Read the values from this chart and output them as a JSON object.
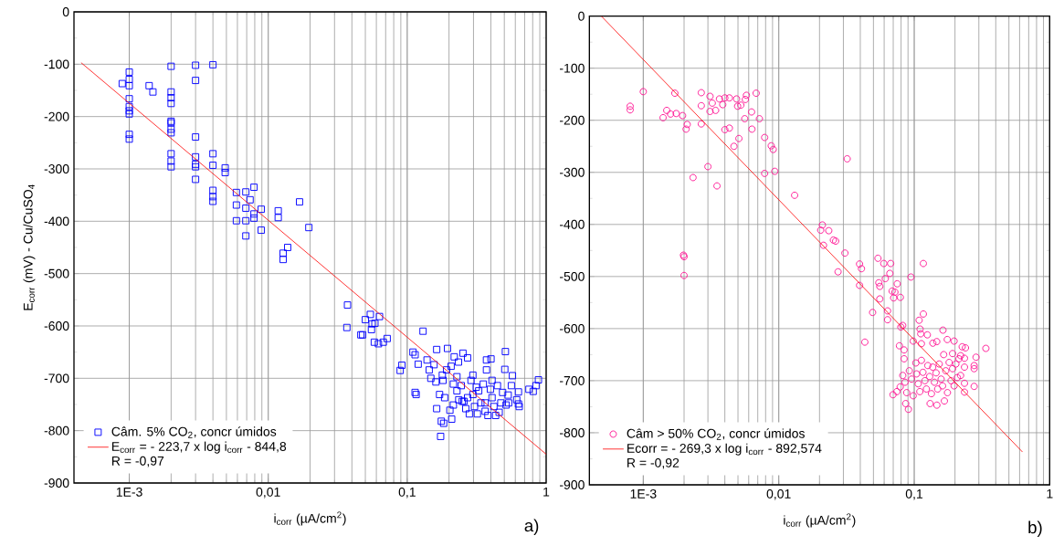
{
  "chart_data": [
    {
      "type": "scatter",
      "xlabel": "i$_{corr}$ (µA/cm$^{2}$)",
      "ylabel": "E$_{corr}$ (mV) - Cu/CuSO$_{4}$",
      "log": "x",
      "xlim": [
        0.0004,
        1
      ],
      "ylim": [
        -900,
        0
      ],
      "xticks": [
        {
          "value": 0.001,
          "label": "1E-3"
        },
        {
          "value": 0.01,
          "label": "0,01"
        },
        {
          "value": 0.1,
          "label": "0,1"
        },
        1
      ],
      "yticks": [
        -900,
        -800,
        -700,
        -600,
        -500,
        -400,
        -300,
        -200,
        -100,
        0
      ],
      "grid": true,
      "legend": "bottom left",
      "marker": "square",
      "series": [
        {
          "name": "Câm. 5% CO$_{2}$, concr úmidos",
          "color": "#0000ff",
          "x": [
            0.00089,
            0.001,
            0.001,
            0.001,
            0.001,
            0.001,
            0.001,
            0.001,
            0.001,
            0.001,
            0.00139,
            0.00148,
            0.002,
            0.002,
            0.002,
            0.002,
            0.002,
            0.002,
            0.002,
            0.002,
            0.002,
            0.002,
            0.002,
            0.003,
            0.003,
            0.003,
            0.003,
            0.003,
            0.003,
            0.003,
            0.004,
            0.004,
            0.004,
            0.004,
            0.004,
            0.004,
            0.0049,
            0.0049,
            0.0059,
            0.0059,
            0.0059,
            0.0069,
            0.0069,
            0.0069,
            0.0069,
            0.0074,
            0.0079,
            0.0079,
            0.0079,
            0.0089,
            0.0089,
            0.0118,
            0.0118,
            0.0168,
            0.0138,
            0.0128,
            0.0128,
            0.0196,
            0.0372,
            0.0368,
            0.0464,
            0.0478,
            0.05,
            0.0543,
            0.0553,
            0.0559,
            0.058,
            0.0586,
            0.0621,
            0.0632,
            0.0673,
            0.0718,
            0.089,
            0.0916,
            0.11,
            0.114,
            0.114,
            0.116,
            0.12,
            0.13,
            0.139,
            0.144,
            0.148,
            0.163,
            0.174,
            0.176,
            0.183,
            0.163,
            0.195,
            0.207,
            0.218,
            0.234,
            0.252,
            0.272,
            0.372,
            0.401,
            0.372,
            0.509,
            0.504,
            0.572,
            0.752,
            0.807,
            0.845,
            0.88,
            0.632,
            0.64,
            0.632,
            0.537,
            0.533,
            0.171,
            0.186,
            0.203,
            0.209,
            0.215,
            0.228,
            0.235,
            0.245,
            0.256,
            0.264,
            0.28,
            0.288,
            0.297,
            0.305,
            0.32,
            0.327,
            0.339,
            0.353,
            0.364,
            0.381,
            0.397,
            0.408,
            0.421,
            0.433,
            0.446,
            0.459,
            0.472,
            0.486,
            0.181,
            0.161,
            0.192,
            0.156,
            0.179,
            0.228,
            0.297,
            0.408,
            0.562,
            0.614,
            0.364,
            0.272,
            0.215,
            0.249,
            0.314,
            0.515
          ],
          "values": [
            -137,
            -115,
            -129,
            -141,
            -166,
            -181,
            -189,
            -195,
            -234,
            -243,
            -141,
            -153,
            -104,
            -153,
            -164,
            -175,
            -209,
            -212,
            -224,
            -231,
            -271,
            -285,
            -296,
            -102,
            -131,
            -239,
            -277,
            -291,
            -296,
            -320,
            -101,
            -271,
            -293,
            -341,
            -353,
            -362,
            -298,
            -307,
            -345,
            -369,
            -399,
            -344,
            -375,
            -399,
            -428,
            -359,
            -335,
            -386,
            -394,
            -377,
            -417,
            -380,
            -393,
            -363,
            -450,
            -461,
            -473,
            -412,
            -560,
            -603,
            -617,
            -617,
            -588,
            -578,
            -607,
            -596,
            -631,
            -595,
            -634,
            -582,
            -631,
            -624,
            -685,
            -675,
            -650,
            -655,
            -727,
            -731,
            -673,
            -610,
            -665,
            -684,
            -700,
            -758,
            -811,
            -782,
            -786,
            -645,
            -643,
            -677,
            -659,
            -669,
            -652,
            -661,
            -665,
            -663,
            -684,
            -649,
            -683,
            -695,
            -721,
            -725,
            -714,
            -703,
            -726,
            -754,
            -749,
            -747,
            -732,
            -731,
            -737,
            -761,
            -778,
            -751,
            -724,
            -741,
            -714,
            -744,
            -758,
            -768,
            -704,
            -731,
            -754,
            -768,
            -724,
            -747,
            -711,
            -763,
            -771,
            -721,
            -737,
            -754,
            -771,
            -714,
            -765,
            -747,
            -727,
            -704,
            -707,
            -684,
            -674,
            -694,
            -697,
            -694,
            -704,
            -714,
            -741,
            -747,
            -737,
            -711,
            -744,
            -717,
            -751
          ]
        },
        {
          "type": "line",
          "name": "E$_{corr}$ = - 223,7 x log i$_{corr}$ - 844,8",
          "color": "#ff0000",
          "marker": "none",
          "line_style": "solid",
          "x": [
            0.00045,
            1
          ],
          "values": [
            -97,
            -845
          ]
        }
      ],
      "annotations": [
        "R = -0,97",
        "a)"
      ]
    },
    {
      "type": "scatter",
      "xlabel": "i$_{corr}$ (µA/cm$^{2}$)",
      "log": "x",
      "xlim": [
        0.0004,
        1
      ],
      "ylim": [
        -900,
        0
      ],
      "xticks": [
        {
          "value": 0.001,
          "label": "1E-3"
        },
        {
          "value": 0.01,
          "label": "0,01"
        },
        {
          "value": 0.1,
          "label": "0,1"
        },
        1
      ],
      "yticks": [
        -900,
        -800,
        -700,
        -600,
        -500,
        -400,
        -300,
        -200,
        -100,
        0
      ],
      "grid": true,
      "legend": "bottom left",
      "marker": "circle",
      "series": [
        {
          "name": "Câm > 50% CO$_{2}$, concr úmidos",
          "color": "#ff1493",
          "x": [
            0.0008,
            0.0008,
            0.001,
            0.00171,
            0.0014,
            0.00149,
            0.00159,
            0.00175,
            0.00195,
            0.00211,
            0.00207,
            0.00198,
            0.002,
            0.002,
            0.00233,
            0.00268,
            0.00268,
            0.00268,
            0.003,
            0.00311,
            0.00311,
            0.00323,
            0.00342,
            0.0035,
            0.00365,
            0.00386,
            0.004,
            0.004,
            0.00432,
            0.00432,
            0.00467,
            0.00488,
            0.00497,
            0.00508,
            0.00525,
            0.00561,
            0.00567,
            0.00577,
            0.0063,
            0.00634,
            0.00681,
            0.0072,
            0.00787,
            0.00787,
            0.0088,
            0.0091,
            0.00935,
            0.0131,
            0.021,
            0.0204,
            0.0214,
            0.0234,
            0.0253,
            0.0263,
            0.0308,
            0.032,
            0.0274,
            0.0395,
            0.0408,
            0.054,
            0.0596,
            0.067,
            0.0661,
            0.1168,
            0.0946,
            0.0395,
            0.0493,
            0.0548,
            0.0557,
            0.0557,
            0.0612,
            0.0636,
            0.0636,
            0.0749,
            0.0687,
            0.072,
            0.0705,
            0.079,
            0.0778,
            0.0822,
            0.0842,
            0.0842,
            0.0865,
            0.0906,
            0.0432,
            0.0797,
            0.0983,
            0.1087,
            0.1105,
            0.1117,
            0.1168,
            0.113,
            0.125,
            0.1373,
            0.1467,
            0.163,
            0.1754,
            0.197,
            0.338,
            0.286,
            0.277,
            0.277,
            0.277,
            0.235,
            0.235,
            0.235,
            0.235,
            0.239,
            0.22,
            0.22,
            0.226,
            0.165,
            0.192,
            0.0697,
            0.0745,
            0.0788,
            0.0823,
            0.0856,
            0.088,
            0.092,
            0.0956,
            0.0983,
            0.1028,
            0.104,
            0.107,
            0.11,
            0.113,
            0.116,
            0.12,
            0.123,
            0.126,
            0.13,
            0.134,
            0.137,
            0.141,
            0.145,
            0.149,
            0.153,
            0.158,
            0.162,
            0.171,
            0.176,
            0.181,
            0.187,
            0.192,
            0.197,
            0.203,
            0.208,
            0.214,
            0.131,
            0.147,
            0.167
          ],
          "values": [
            -173,
            -180,
            -145,
            -148,
            -195,
            -181,
            -188,
            -187,
            -191,
            -208,
            -217,
            -459,
            -462,
            -498,
            -310,
            -147,
            -172,
            -207,
            -289,
            -154,
            -183,
            -167,
            -181,
            -326,
            -159,
            -170,
            -157,
            -218,
            -157,
            -215,
            -250,
            -159,
            -173,
            -235,
            -171,
            -197,
            -160,
            -152,
            -184,
            -217,
            -148,
            -197,
            -233,
            -302,
            -249,
            -256,
            -298,
            -344,
            -401,
            -411,
            -440,
            -412,
            -430,
            -432,
            -455,
            -274,
            -491,
            -476,
            -485,
            -465,
            -475,
            -475,
            -494,
            -475,
            -501,
            -517,
            -569,
            -512,
            -519,
            -543,
            -504,
            -566,
            -583,
            -514,
            -528,
            -530,
            -541,
            -540,
            -633,
            -594,
            -641,
            -658,
            -744,
            -755,
            -626,
            -597,
            -624,
            -584,
            -601,
            -610,
            -572,
            -629,
            -612,
            -628,
            -625,
            -603,
            -621,
            -624,
            -638,
            -655,
            -671,
            -677,
            -711,
            -657,
            -674,
            -705,
            -722,
            -637,
            -652,
            -690,
            -635,
            -650,
            -648,
            -727,
            -721,
            -712,
            -690,
            -703,
            -723,
            -681,
            -697,
            -729,
            -666,
            -687,
            -706,
            -721,
            -661,
            -684,
            -700,
            -716,
            -671,
            -692,
            -725,
            -674,
            -703,
            -685,
            -716,
            -668,
            -697,
            -710,
            -681,
            -723,
            -665,
            -700,
            -677,
            -710,
            -668,
            -694,
            -658,
            -744,
            -747,
            -739
          ]
        },
        {
          "type": "line",
          "name": "Ecorr = - 269,3 x log i$_{corr}$ - 892,574",
          "color": "#ff0000",
          "marker": "none",
          "line_style": "solid",
          "x": [
            0.00049,
            0.63
          ],
          "values": [
            0,
            -837
          ]
        }
      ],
      "annotations": [
        "R = -0,92",
        "b)"
      ]
    }
  ]
}
